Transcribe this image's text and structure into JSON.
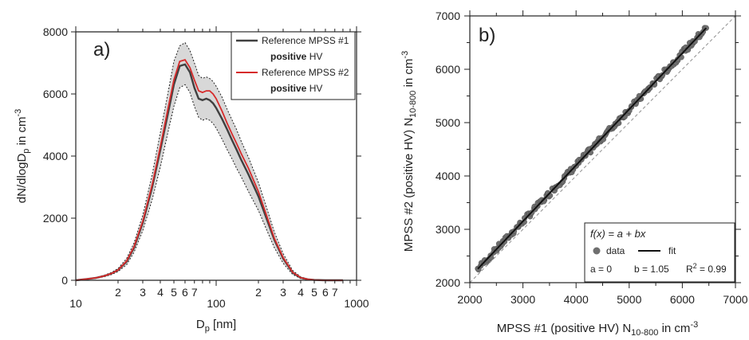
{
  "colors": {
    "ref1": "#404040",
    "ref2": "#d62b2b",
    "band": "#d8d8d8",
    "point": "#6f6f6f",
    "fit": "#111111",
    "identity": "#999999"
  },
  "chart_data": [
    {
      "type": "line",
      "panel_label": "a)",
      "xscale": "log",
      "xlim": [
        10,
        1000
      ],
      "ylim": [
        0,
        8000
      ],
      "xlabel": {
        "main": "D",
        "sub": "p",
        "rest": " [nm]"
      },
      "ylabel": {
        "a": "dN/dlogD",
        "sub": "p",
        "b": " in cm",
        "sup": "-3"
      },
      "x_tick_labels": [
        {
          "v": 10,
          "t": "10"
        },
        {
          "v": 20,
          "t": "2"
        },
        {
          "v": 30,
          "t": "3"
        },
        {
          "v": 40,
          "t": "4"
        },
        {
          "v": 50,
          "t": "5"
        },
        {
          "v": 60,
          "t": "6"
        },
        {
          "v": 70,
          "t": "7"
        },
        {
          "v": 100,
          "t": "100"
        },
        {
          "v": 200,
          "t": "2"
        },
        {
          "v": 300,
          "t": "3"
        },
        {
          "v": 400,
          "t": "4"
        },
        {
          "v": 500,
          "t": "5"
        },
        {
          "v": 600,
          "t": "6"
        },
        {
          "v": 700,
          "t": "7"
        },
        {
          "v": 1000,
          "t": "1000"
        }
      ],
      "y_ticks": [
        0,
        2000,
        4000,
        6000,
        8000
      ],
      "legend": {
        "position": "top-right",
        "entries": [
          {
            "line1": "Reference MPSS #1",
            "bold": "positive",
            "rest": " HV",
            "color_key": "ref1"
          },
          {
            "line1": "Reference MPSS #2",
            "bold": "positive",
            "rest": " HV",
            "color_key": "ref2"
          }
        ]
      },
      "x": [
        10,
        12,
        14,
        16,
        18,
        20,
        23,
        26,
        30,
        35,
        40,
        45,
        50,
        55,
        60,
        65,
        70,
        75,
        80,
        85,
        90,
        95,
        100,
        110,
        120,
        130,
        140,
        150,
        170,
        200,
        230,
        260,
        300,
        350,
        400,
        450,
        500,
        600,
        700,
        800
      ],
      "series": [
        {
          "name": "Reference MPSS #1 positive HV",
          "color_key": "ref1",
          "values": [
            0,
            40,
            80,
            140,
            220,
            330,
            600,
            1050,
            1850,
            3000,
            4200,
            5300,
            6300,
            6900,
            6950,
            6700,
            6200,
            5850,
            5800,
            5850,
            5800,
            5700,
            5550,
            5200,
            4850,
            4500,
            4200,
            3900,
            3400,
            2700,
            1950,
            1300,
            700,
            250,
            80,
            30,
            10,
            0,
            0,
            0
          ]
        },
        {
          "name": "Reference MPSS #2 positive HV",
          "color_key": "ref2",
          "values": [
            0,
            40,
            80,
            140,
            220,
            330,
            620,
            1080,
            1900,
            3080,
            4300,
            5450,
            6450,
            7050,
            7100,
            6850,
            6450,
            6100,
            6050,
            6100,
            6100,
            6000,
            5850,
            5450,
            5050,
            4700,
            4400,
            4100,
            3600,
            2850,
            2050,
            1350,
            730,
            260,
            85,
            30,
            10,
            0,
            0,
            0
          ]
        }
      ],
      "band_upper": [
        0,
        50,
        95,
        165,
        255,
        380,
        700,
        1200,
        2100,
        3400,
        4750,
        5950,
        7050,
        7550,
        7650,
        7400,
        7000,
        6600,
        6500,
        6550,
        6500,
        6400,
        6250,
        5900,
        5500,
        5150,
        4850,
        4500,
        3950,
        3150,
        2300,
        1550,
        860,
        320,
        110,
        40,
        15,
        0,
        0,
        0
      ],
      "band_lower": [
        0,
        30,
        65,
        115,
        185,
        280,
        500,
        900,
        1600,
        2600,
        3650,
        4700,
        5600,
        6200,
        6300,
        6050,
        5600,
        5250,
        5150,
        5200,
        5150,
        5050,
        4900,
        4550,
        4200,
        3900,
        3600,
        3350,
        2850,
        2250,
        1600,
        1050,
        550,
        190,
        55,
        20,
        5,
        0,
        0,
        0
      ]
    },
    {
      "type": "scatter",
      "panel_label": "b)",
      "xlim": [
        2000,
        7000
      ],
      "ylim": [
        2000,
        7000
      ],
      "x_ticks": [
        2000,
        3000,
        4000,
        5000,
        6000,
        7000
      ],
      "y_ticks": [
        2000,
        3000,
        4000,
        5000,
        6000,
        7000
      ],
      "x_tick_labels": [
        "2000",
        "3000",
        "4000",
        "5000",
        "6000",
        "7000"
      ],
      "y_tick_labels": [
        "2000",
        "3000",
        "4000",
        "5000",
        "6000",
        "7000"
      ],
      "xlabel": {
        "a": "MPSS #1 (positive HV) N",
        "sub": "10-800",
        "b": " in cm",
        "sup": "-3"
      },
      "ylabel": {
        "a": "MPSS #2 (positive HV) N",
        "sub": "10-800",
        "b": " in cm",
        "sup": "-3"
      },
      "fit": {
        "a": 0,
        "b": 1.05,
        "r2": 0.99,
        "x_range": [
          2150,
          6450
        ]
      },
      "identity_line": true,
      "legend": {
        "position": "bottom-right",
        "formula": "f(x) = a + bx",
        "data_label": "data",
        "fit_label": "fit",
        "params": {
          "a": "a = 0",
          "b": "b = 1.05",
          "r2_pre": "R",
          "r2_sup": "2",
          "r2_post": " = 0.99"
        }
      }
    }
  ]
}
